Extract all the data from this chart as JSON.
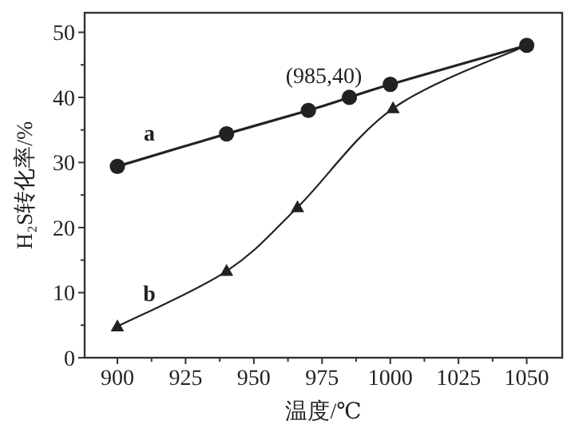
{
  "chart_data": {
    "type": "line",
    "xlabel": "温度/℃",
    "ylabel": "H₂S转化率/%",
    "xlim": [
      888,
      1063
    ],
    "ylim": [
      0,
      53
    ],
    "xticks": [
      900,
      {
        "value": 912.5,
        "label": null
      },
      925,
      {
        "value": 937.5,
        "label": null
      },
      950,
      {
        "value": 962.5,
        "label": null
      },
      975,
      {
        "value": 987.5,
        "label": null
      },
      1000,
      {
        "value": 1012.5,
        "label": null
      },
      1025,
      {
        "value": 1037.5,
        "label": null
      },
      1050
    ],
    "yticks": [
      0,
      {
        "value": 5,
        "label": null
      },
      10,
      {
        "value": 15,
        "label": null
      },
      20,
      {
        "value": 25,
        "label": null
      },
      30,
      {
        "value": 35,
        "label": null
      },
      40,
      {
        "value": 45,
        "label": null
      },
      50
    ],
    "grid": false,
    "line_style": "solid",
    "series": [
      {
        "name": "a",
        "color": "#222222",
        "marker": "circle",
        "x": [
          900,
          940,
          970,
          985,
          1000,
          1050
        ],
        "values": [
          29.4,
          34.4,
          38.0,
          40.0,
          42.0,
          48.0
        ]
      },
      {
        "name": "b",
        "color": "#222222",
        "marker": "triangle",
        "x": [
          900,
          940,
          966,
          1001,
          1050
        ],
        "values": [
          4.8,
          13.3,
          23.1,
          38.3,
          48.0
        ]
      }
    ],
    "annotations": [
      {
        "text": "(985,40)",
        "x": 985,
        "y": 40
      }
    ]
  }
}
